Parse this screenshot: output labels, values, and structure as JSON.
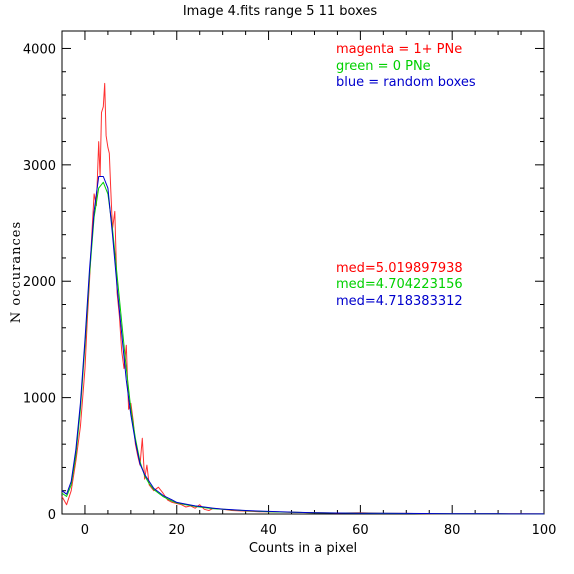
{
  "chart_data": {
    "type": "line",
    "title": "Image 4.fits   range 5    11 boxes",
    "xlabel": "Counts in a pixel",
    "ylabel": "N  occurances",
    "xlim": [
      -5,
      100
    ],
    "ylim": [
      0,
      4150
    ],
    "xticks": [
      0,
      20,
      40,
      60,
      80,
      100
    ],
    "yticks": [
      0,
      1000,
      2000,
      3000,
      4000
    ],
    "grid": false,
    "legend_placement": "top-right",
    "legend": [
      {
        "text": "magenta = 1+ PNe",
        "color": "#ff0000"
      },
      {
        "text": "green = 0 PNe",
        "color": "#00d000"
      },
      {
        "text": "blue = random boxes",
        "color": "#0000cc"
      }
    ],
    "annotations": [
      {
        "text": "med=5.019897938",
        "color": "#ff0000"
      },
      {
        "text": "med=4.704223156",
        "color": "#00d000"
      },
      {
        "text": "med=4.718383312",
        "color": "#0000cc"
      }
    ],
    "series": [
      {
        "color": "#ff3030",
        "x": [
          -5,
          -4,
          -3,
          -2,
          -1,
          0,
          0.5,
          1,
          1.5,
          2,
          2.5,
          3,
          3.3,
          3.6,
          4,
          4.3,
          4.6,
          5,
          5.3,
          5.6,
          6,
          6.5,
          7,
          7.5,
          8,
          8.5,
          9,
          9.5,
          10,
          10.5,
          11,
          11.5,
          12,
          12.5,
          13,
          13.5,
          14,
          15,
          16,
          17,
          18,
          19,
          20,
          21,
          22,
          23,
          24,
          25,
          26,
          27,
          28,
          30,
          32,
          35,
          38,
          40,
          45,
          50,
          55,
          60,
          65,
          70,
          75,
          80,
          85,
          90,
          95,
          100
        ],
        "y": [
          150,
          80,
          200,
          450,
          750,
          1250,
          1650,
          2000,
          2400,
          2750,
          2650,
          3200,
          2900,
          3450,
          3500,
          3700,
          3250,
          3150,
          3100,
          2800,
          2450,
          2600,
          1900,
          1700,
          1400,
          1250,
          1450,
          900,
          950,
          800,
          600,
          500,
          420,
          650,
          300,
          420,
          250,
          200,
          230,
          180,
          120,
          100,
          90,
          80,
          60,
          70,
          50,
          80,
          40,
          30,
          50,
          40,
          30,
          25,
          20,
          20,
          15,
          10,
          8,
          10,
          5,
          5,
          3,
          3,
          2,
          2,
          2,
          1
        ]
      },
      {
        "color": "#00d000",
        "x": [
          -5,
          -4,
          -3,
          -2,
          -1,
          0,
          1,
          2,
          3,
          4,
          5,
          6,
          7,
          8,
          9,
          10,
          11,
          12,
          13,
          14,
          15,
          16,
          17,
          18,
          19,
          20,
          22,
          24,
          26,
          28,
          30,
          35,
          40,
          45,
          50,
          60,
          70,
          80,
          90,
          100
        ],
        "y": [
          180,
          150,
          250,
          500,
          900,
          1450,
          2050,
          2550,
          2800,
          2850,
          2750,
          2450,
          2050,
          1650,
          1250,
          900,
          650,
          450,
          330,
          260,
          210,
          180,
          150,
          130,
          110,
          95,
          80,
          65,
          55,
          45,
          40,
          28,
          20,
          15,
          10,
          6,
          4,
          3,
          2,
          1
        ]
      },
      {
        "color": "#0000cc",
        "x": [
          -5,
          -4,
          -3,
          -2,
          -1,
          0,
          1,
          2,
          3,
          4,
          5,
          6,
          7,
          8,
          9,
          10,
          11,
          12,
          13,
          14,
          15,
          16,
          17,
          18,
          19,
          20,
          22,
          24,
          26,
          28,
          30,
          35,
          40,
          45,
          50,
          60,
          70,
          80,
          90,
          100
        ],
        "y": [
          200,
          170,
          280,
          550,
          950,
          1500,
          2100,
          2600,
          2900,
          2900,
          2800,
          2400,
          1950,
          1550,
          1150,
          850,
          620,
          430,
          340,
          280,
          220,
          190,
          160,
          140,
          120,
          100,
          85,
          70,
          60,
          50,
          42,
          30,
          22,
          16,
          11,
          7,
          5,
          3,
          2,
          1
        ]
      }
    ]
  }
}
